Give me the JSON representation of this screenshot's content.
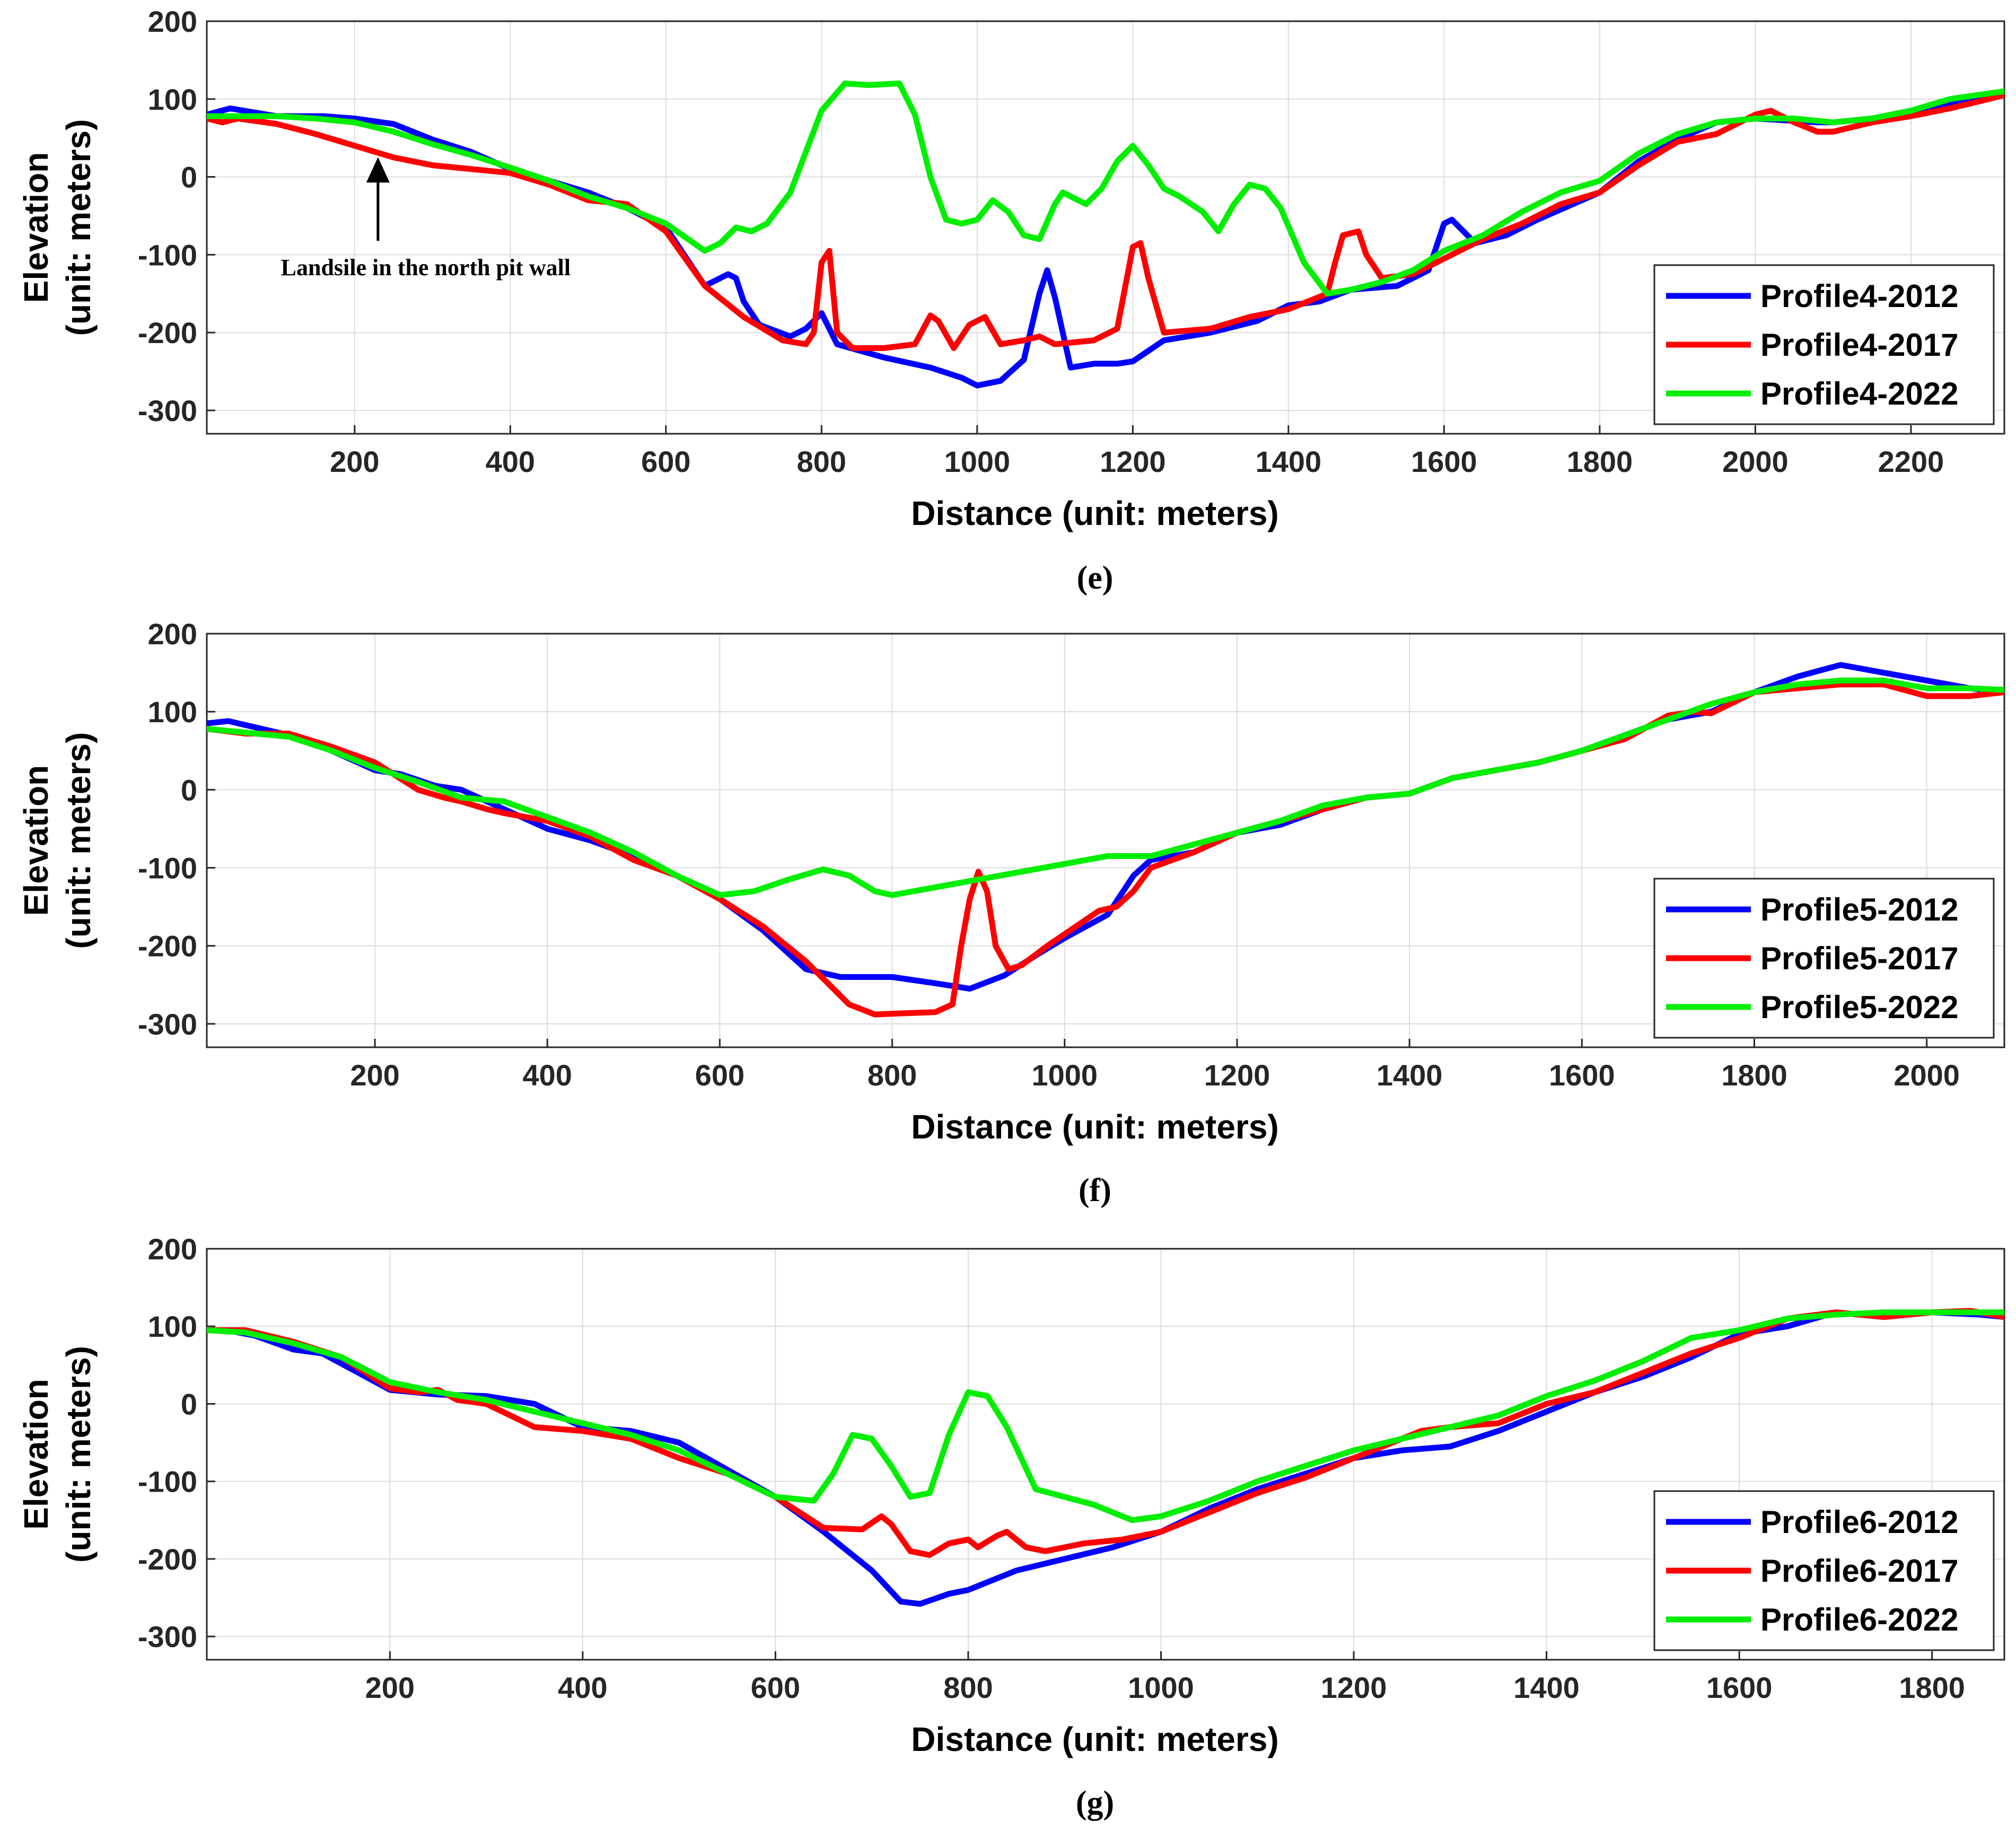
{
  "chart_data": [
    {
      "type": "line",
      "caption": "(e)",
      "xlabel": "Distance (unit: meters)",
      "ylabel_line1": "Elevation",
      "ylabel_line2": "(unit: meters)",
      "xlim": [
        10,
        2320
      ],
      "ylim": [
        -330,
        200
      ],
      "xticks": [
        200,
        400,
        600,
        800,
        1000,
        1200,
        1400,
        1600,
        1800,
        2000,
        2200
      ],
      "yticks": [
        200,
        100,
        0,
        -100,
        -200,
        -300
      ],
      "grid": true,
      "legend_position": "bottom-right",
      "annotation": {
        "text": "Landsile in the north pit wall",
        "x": 230,
        "y": 20
      },
      "series": [
        {
          "name": "Profile4-2012",
          "color": "#0000ff",
          "x": [
            10,
            40,
            100,
            160,
            200,
            250,
            300,
            350,
            400,
            450,
            500,
            550,
            600,
            650,
            680,
            690,
            700,
            720,
            760,
            780,
            800,
            820,
            880,
            940,
            980,
            1000,
            1030,
            1060,
            1080,
            1090,
            1100,
            1120,
            1150,
            1180,
            1200,
            1240,
            1300,
            1360,
            1400,
            1440,
            1480,
            1540,
            1580,
            1600,
            1610,
            1620,
            1640,
            1680,
            1720,
            1800,
            1850,
            1900,
            1950,
            2000,
            2050,
            2080,
            2100,
            2150,
            2200,
            2250,
            2320
          ],
          "y": [
            80,
            88,
            78,
            78,
            75,
            68,
            48,
            32,
            10,
            -5,
            -20,
            -40,
            -65,
            -140,
            -125,
            -130,
            -160,
            -190,
            -205,
            -195,
            -175,
            -215,
            -232,
            -245,
            -258,
            -268,
            -262,
            -235,
            -150,
            -120,
            -155,
            -245,
            -240,
            -240,
            -237,
            -210,
            -200,
            -185,
            -165,
            -160,
            -145,
            -140,
            -120,
            -60,
            -55,
            -65,
            -85,
            -75,
            -55,
            -20,
            20,
            48,
            70,
            75,
            72,
            70,
            70,
            75,
            85,
            95,
            105
          ]
        },
        {
          "name": "Profile4-2017",
          "color": "#ff0000",
          "x": [
            10,
            30,
            50,
            100,
            150,
            200,
            250,
            300,
            350,
            400,
            450,
            500,
            550,
            600,
            650,
            700,
            750,
            780,
            790,
            800,
            810,
            820,
            840,
            880,
            920,
            940,
            950,
            970,
            990,
            1010,
            1030,
            1060,
            1080,
            1100,
            1150,
            1180,
            1200,
            1210,
            1220,
            1240,
            1300,
            1350,
            1400,
            1450,
            1460,
            1470,
            1490,
            1500,
            1520,
            1560,
            1600,
            1650,
            1700,
            1750,
            1800,
            1850,
            1900,
            1950,
            2000,
            2020,
            2050,
            2080,
            2100,
            2150,
            2200,
            2250,
            2300,
            2320
          ],
          "y": [
            75,
            70,
            75,
            68,
            55,
            40,
            25,
            15,
            10,
            5,
            -10,
            -30,
            -35,
            -70,
            -140,
            -180,
            -210,
            -215,
            -200,
            -110,
            -95,
            -200,
            -220,
            -220,
            -215,
            -178,
            -185,
            -220,
            -190,
            -180,
            -215,
            -210,
            -205,
            -215,
            -210,
            -195,
            -90,
            -85,
            -130,
            -200,
            -195,
            -180,
            -170,
            -150,
            -110,
            -75,
            -70,
            -100,
            -130,
            -125,
            -105,
            -80,
            -60,
            -35,
            -20,
            15,
            45,
            55,
            80,
            85,
            70,
            58,
            58,
            70,
            78,
            88,
            100,
            105
          ]
        },
        {
          "name": "Profile4-2022",
          "color": "#00ee00",
          "x": [
            10,
            100,
            150,
            200,
            250,
            300,
            350,
            400,
            450,
            500,
            550,
            600,
            650,
            670,
            690,
            710,
            730,
            760,
            800,
            830,
            860,
            900,
            920,
            940,
            960,
            980,
            1000,
            1020,
            1040,
            1060,
            1080,
            1100,
            1110,
            1120,
            1140,
            1160,
            1180,
            1200,
            1220,
            1240,
            1260,
            1290,
            1310,
            1330,
            1350,
            1370,
            1390,
            1420,
            1450,
            1480,
            1520,
            1560,
            1600,
            1650,
            1700,
            1750,
            1800,
            1850,
            1900,
            1950,
            2000,
            2050,
            2100,
            2150,
            2200,
            2250,
            2320
          ],
          "y": [
            78,
            78,
            75,
            70,
            58,
            42,
            28,
            12,
            -5,
            -25,
            -40,
            -60,
            -95,
            -85,
            -65,
            -70,
            -60,
            -20,
            85,
            120,
            118,
            120,
            80,
            0,
            -55,
            -60,
            -55,
            -30,
            -45,
            -75,
            -80,
            -35,
            -20,
            -25,
            -35,
            -15,
            20,
            40,
            15,
            -15,
            -25,
            -45,
            -70,
            -35,
            -10,
            -15,
            -40,
            -110,
            -150,
            -145,
            -135,
            -120,
            -95,
            -75,
            -45,
            -20,
            -5,
            30,
            55,
            70,
            75,
            75,
            70,
            75,
            85,
            100,
            110
          ]
        }
      ]
    },
    {
      "type": "line",
      "caption": "(f)",
      "xlabel": "Distance (unit: meters)",
      "ylabel_line1": "Elevation",
      "ylabel_line2": "(unit: meters)",
      "xlim": [
        5,
        2090
      ],
      "ylim": [
        -330,
        200
      ],
      "xticks": [
        200,
        400,
        600,
        800,
        1000,
        1200,
        1400,
        1600,
        1800,
        2000
      ],
      "yticks": [
        200,
        100,
        0,
        -100,
        -200,
        -300
      ],
      "grid": true,
      "legend_position": "bottom-right",
      "series": [
        {
          "name": "Profile5-2012",
          "color": "#0000ff",
          "x": [
            5,
            30,
            100,
            150,
            200,
            230,
            270,
            300,
            350,
            400,
            450,
            500,
            550,
            600,
            650,
            700,
            740,
            800,
            850,
            890,
            930,
            970,
            1000,
            1050,
            1080,
            1100,
            1150,
            1200,
            1250,
            1300,
            1350,
            1400,
            1450,
            1500,
            1550,
            1600,
            1650,
            1700,
            1750,
            1800,
            1850,
            1900,
            1950,
            2000,
            2050,
            2090
          ],
          "y": [
            85,
            88,
            70,
            50,
            25,
            20,
            5,
            0,
            -25,
            -50,
            -65,
            -85,
            -110,
            -140,
            -180,
            -230,
            -240,
            -240,
            -248,
            -255,
            -238,
            -210,
            -190,
            -160,
            -110,
            -90,
            -80,
            -55,
            -45,
            -25,
            -10,
            -5,
            15,
            25,
            35,
            50,
            70,
            90,
            100,
            125,
            145,
            160,
            150,
            140,
            130,
            125
          ]
        },
        {
          "name": "Profile5-2017",
          "color": "#ff0000",
          "x": [
            5,
            50,
            100,
            150,
            200,
            250,
            280,
            300,
            330,
            350,
            400,
            450,
            500,
            550,
            600,
            650,
            700,
            750,
            780,
            800,
            850,
            870,
            880,
            890,
            900,
            910,
            920,
            935,
            950,
            980,
            1000,
            1040,
            1060,
            1080,
            1100,
            1150,
            1200,
            1250,
            1300,
            1350,
            1400,
            1450,
            1500,
            1550,
            1600,
            1650,
            1700,
            1730,
            1750,
            1800,
            1850,
            1900,
            1950,
            2000,
            2050,
            2090
          ],
          "y": [
            78,
            72,
            72,
            55,
            35,
            0,
            -10,
            -15,
            -25,
            -30,
            -40,
            -60,
            -90,
            -110,
            -140,
            -175,
            -220,
            -275,
            -288,
            -287,
            -285,
            -275,
            -200,
            -140,
            -105,
            -130,
            -200,
            -230,
            -225,
            -200,
            -185,
            -155,
            -150,
            -130,
            -100,
            -80,
            -55,
            -40,
            -25,
            -10,
            -5,
            15,
            25,
            35,
            50,
            65,
            95,
            100,
            98,
            125,
            130,
            135,
            135,
            120,
            120,
            125
          ]
        },
        {
          "name": "Profile5-2022",
          "color": "#00ee00",
          "x": [
            5,
            100,
            150,
            200,
            250,
            300,
            350,
            400,
            450,
            500,
            550,
            600,
            640,
            680,
            720,
            750,
            780,
            800,
            850,
            900,
            950,
            1000,
            1050,
            1100,
            1150,
            1200,
            1250,
            1300,
            1350,
            1400,
            1450,
            1500,
            1550,
            1600,
            1650,
            1700,
            1750,
            1800,
            1850,
            1900,
            1950,
            2000,
            2050,
            2090
          ],
          "y": [
            78,
            68,
            50,
            28,
            10,
            -10,
            -15,
            -35,
            -55,
            -80,
            -110,
            -135,
            -130,
            -115,
            -102,
            -110,
            -130,
            -135,
            -125,
            -115,
            -105,
            -95,
            -85,
            -85,
            -70,
            -55,
            -40,
            -20,
            -10,
            -5,
            15,
            25,
            35,
            50,
            70,
            90,
            110,
            125,
            135,
            140,
            140,
            130,
            130,
            128
          ]
        }
      ]
    },
    {
      "type": "line",
      "caption": "(g)",
      "xlabel": "Distance (unit: meters)",
      "ylabel_line1": "Elevation",
      "ylabel_line2": "(unit: meters)",
      "xlim": [
        10,
        1875
      ],
      "ylim": [
        -330,
        200
      ],
      "xticks": [
        200,
        400,
        600,
        800,
        1000,
        1200,
        1400,
        1600,
        1800
      ],
      "yticks": [
        200,
        100,
        0,
        -100,
        -200,
        -300
      ],
      "grid": true,
      "legend_position": "bottom-right",
      "series": [
        {
          "name": "Profile6-2012",
          "color": "#0000ff",
          "x": [
            10,
            30,
            60,
            100,
            130,
            160,
            200,
            250,
            300,
            350,
            400,
            450,
            500,
            550,
            600,
            650,
            700,
            730,
            750,
            780,
            800,
            850,
            900,
            950,
            1000,
            1050,
            1100,
            1150,
            1200,
            1250,
            1300,
            1350,
            1400,
            1450,
            1500,
            1550,
            1600,
            1650,
            1700,
            1750,
            1800,
            1850,
            1875
          ],
          "y": [
            95,
            95,
            88,
            70,
            65,
            45,
            18,
            12,
            10,
            0,
            -30,
            -35,
            -50,
            -85,
            -120,
            -165,
            -215,
            -255,
            -258,
            -245,
            -240,
            -215,
            -200,
            -185,
            -165,
            -135,
            -110,
            -90,
            -70,
            -60,
            -55,
            -35,
            -10,
            15,
            35,
            60,
            90,
            100,
            118,
            112,
            118,
            115,
            112
          ]
        },
        {
          "name": "Profile6-2017",
          "color": "#ff0000",
          "x": [
            10,
            50,
            100,
            150,
            200,
            230,
            250,
            270,
            300,
            350,
            400,
            450,
            500,
            550,
            600,
            650,
            690,
            710,
            720,
            740,
            760,
            780,
            800,
            810,
            830,
            840,
            860,
            880,
            920,
            960,
            1000,
            1050,
            1100,
            1150,
            1200,
            1250,
            1270,
            1300,
            1350,
            1400,
            1450,
            1500,
            1550,
            1600,
            1650,
            1700,
            1750,
            1800,
            1840,
            1875
          ],
          "y": [
            95,
            95,
            80,
            60,
            20,
            15,
            18,
            5,
            0,
            -30,
            -35,
            -45,
            -70,
            -90,
            -120,
            -160,
            -162,
            -145,
            -155,
            -190,
            -195,
            -180,
            -175,
            -185,
            -170,
            -165,
            -185,
            -190,
            -180,
            -175,
            -165,
            -140,
            -115,
            -95,
            -70,
            -45,
            -35,
            -30,
            -25,
            0,
            15,
            40,
            65,
            85,
            110,
            118,
            112,
            118,
            120,
            112
          ]
        },
        {
          "name": "Profile6-2022",
          "color": "#00ee00",
          "x": [
            10,
            50,
            100,
            150,
            200,
            250,
            300,
            350,
            400,
            450,
            500,
            550,
            600,
            640,
            660,
            680,
            700,
            720,
            740,
            760,
            780,
            800,
            820,
            840,
            870,
            900,
            930,
            970,
            1000,
            1050,
            1100,
            1150,
            1200,
            1250,
            1300,
            1350,
            1400,
            1450,
            1500,
            1550,
            1600,
            1650,
            1700,
            1750,
            1800,
            1875
          ],
          "y": [
            95,
            92,
            78,
            60,
            28,
            15,
            5,
            -10,
            -25,
            -40,
            -60,
            -90,
            -120,
            -125,
            -90,
            -40,
            -45,
            -80,
            -120,
            -115,
            -40,
            15,
            10,
            -30,
            -110,
            -120,
            -130,
            -150,
            -145,
            -125,
            -100,
            -80,
            -60,
            -45,
            -30,
            -15,
            10,
            30,
            55,
            85,
            95,
            110,
            115,
            118,
            118,
            118
          ]
        }
      ]
    }
  ]
}
